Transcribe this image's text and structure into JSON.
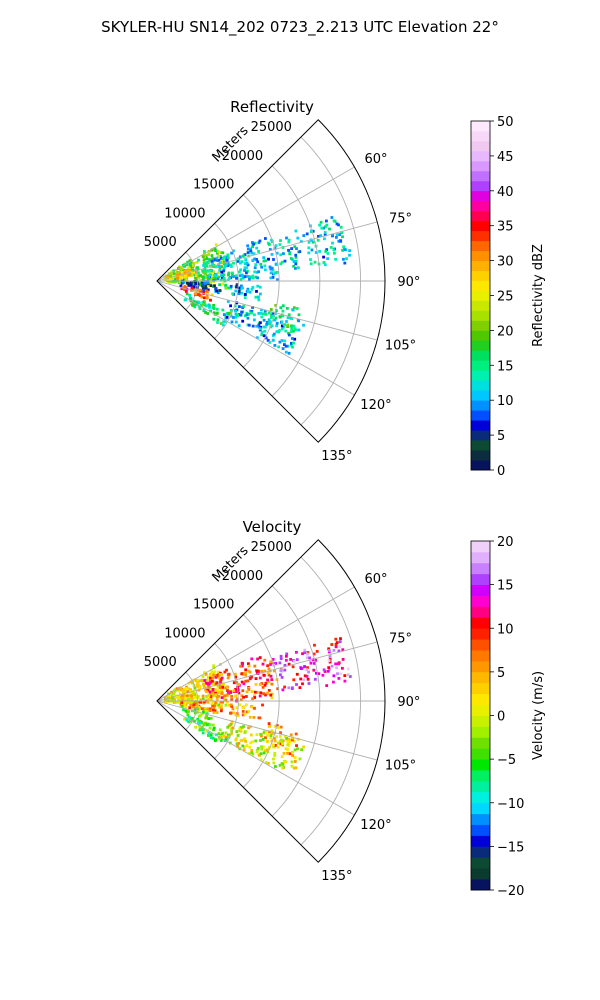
{
  "suptitle": "SKYLER-HU  SN14_202  0723_2.213 UTC Elevation 22°",
  "chart_data": [
    {
      "type": "polar-sector",
      "title": "Reflectivity",
      "range_label": "Meters",
      "r_ticks": [
        5000,
        10000,
        15000,
        20000,
        25000
      ],
      "r_tick_labels": [
        "5000",
        "10000",
        "15000",
        "20000",
        "25000"
      ],
      "rlim": [
        0,
        28000
      ],
      "theta_range_deg": [
        45,
        135
      ],
      "theta_ticks": [
        60,
        75,
        90,
        105,
        120,
        135
      ],
      "theta_tick_labels": [
        "60°",
        "75°",
        "90°",
        "105°",
        "120°",
        "135°"
      ],
      "grid": true,
      "colorbar": {
        "label": "Reflectivity dBZ",
        "range": [
          0,
          50
        ],
        "ticks": [
          0,
          5,
          10,
          15,
          20,
          25,
          30,
          35,
          40,
          45,
          50
        ],
        "tick_labels": [
          "0",
          "5",
          "10",
          "15",
          "20",
          "25",
          "30",
          "35",
          "40",
          "45",
          "50"
        ],
        "colors": [
          "#08135e",
          "#0b2d3d",
          "#0d4a33",
          "#0a2a7a",
          "#0000d8",
          "#0050ff",
          "#0090ff",
          "#00c8ff",
          "#00e0e0",
          "#00f0b0",
          "#00f080",
          "#00e060",
          "#20d020",
          "#50c800",
          "#80d000",
          "#a8e000",
          "#c8e800",
          "#e8f000",
          "#ffe800",
          "#ffd000",
          "#ffb000",
          "#ff9000",
          "#ff6800",
          "#ff3000",
          "#ff0000",
          "#ff0050",
          "#ff00a0",
          "#e000e0",
          "#b040ff",
          "#c070ff",
          "#d898ff",
          "#e8b8ff",
          "#f0c8f0",
          "#f8d8f8",
          "#fde8fd"
        ]
      },
      "regions": [
        {
          "r": [
            1000,
            9000
          ],
          "theta": [
            58,
            96
          ],
          "value": 20
        },
        {
          "r": [
            1000,
            5000
          ],
          "theta": [
            70,
            84
          ],
          "value": 27
        },
        {
          "r": [
            6000,
            15000
          ],
          "theta": [
            68,
            90
          ],
          "value": 12
        },
        {
          "r": [
            3000,
            8000
          ],
          "theta": [
            90,
            102
          ],
          "value": 7
        },
        {
          "r": [
            9000,
            13000
          ],
          "theta": [
            92,
            101
          ],
          "value": 10
        },
        {
          "r": [
            4000,
            10000
          ],
          "theta": [
            113,
            125
          ],
          "value": 16
        },
        {
          "r": [
            3000,
            7000
          ],
          "theta": [
            101,
            110
          ],
          "value": 33
        },
        {
          "r": [
            14000,
            18000
          ],
          "theta": [
            101,
            112
          ],
          "value": 16
        },
        {
          "r": [
            15000,
            24000
          ],
          "theta": [
            70,
            85
          ],
          "value": 12
        },
        {
          "r": [
            9000,
            19000
          ],
          "theta": [
            105,
            120
          ],
          "value": 11
        }
      ]
    },
    {
      "type": "polar-sector",
      "title": "Velocity",
      "range_label": "Meters",
      "r_ticks": [
        5000,
        10000,
        15000,
        20000,
        25000
      ],
      "r_tick_labels": [
        "5000",
        "10000",
        "15000",
        "20000",
        "25000"
      ],
      "rlim": [
        0,
        28000
      ],
      "theta_range_deg": [
        45,
        135
      ],
      "theta_ticks": [
        60,
        75,
        90,
        105,
        120,
        135
      ],
      "theta_tick_labels": [
        "60°",
        "75°",
        "90°",
        "105°",
        "120°",
        "135°"
      ],
      "grid": true,
      "colorbar": {
        "label": "Velocity (m/s)",
        "range": [
          -20,
          20
        ],
        "ticks": [
          -20,
          -15,
          -10,
          -5,
          0,
          5,
          10,
          15,
          20
        ],
        "tick_labels": [
          "−20",
          "−15",
          "−10",
          "−5",
          "0",
          "5",
          "10",
          "15",
          "20"
        ],
        "colors": [
          "#08135e",
          "#0b3a2e",
          "#0d4a33",
          "#0a2a7a",
          "#0000d8",
          "#0050ff",
          "#0090ff",
          "#00d8ff",
          "#00f0e0",
          "#00f0a0",
          "#00f060",
          "#00e800",
          "#40e000",
          "#70e000",
          "#a0f000",
          "#c8f000",
          "#e8f000",
          "#ffe800",
          "#ffd000",
          "#ffb800",
          "#ff9800",
          "#ff7800",
          "#ff5000",
          "#ff2000",
          "#ff0000",
          "#ff0080",
          "#ff00d0",
          "#d000ff",
          "#b040ff",
          "#c880ff",
          "#e0b0ff",
          "#f0d0f8"
        ]
      },
      "regions": [
        {
          "r": [
            1000,
            9000
          ],
          "theta": [
            58,
            96
          ],
          "value": 2
        },
        {
          "r": [
            6000,
            15000
          ],
          "theta": [
            66,
            90
          ],
          "value": 8
        },
        {
          "r": [
            3000,
            8000
          ],
          "theta": [
            90,
            102
          ],
          "value": 5
        },
        {
          "r": [
            9000,
            13000
          ],
          "theta": [
            92,
            101
          ],
          "value": 5
        },
        {
          "r": [
            4000,
            10000
          ],
          "theta": [
            113,
            125
          ],
          "value": -5
        },
        {
          "r": [
            3000,
            7000
          ],
          "theta": [
            101,
            110
          ],
          "value": -3
        },
        {
          "r": [
            14000,
            18000
          ],
          "theta": [
            101,
            112
          ],
          "value": 5
        },
        {
          "r": [
            15000,
            24000
          ],
          "theta": [
            70,
            85
          ],
          "value": 14
        },
        {
          "r": [
            9000,
            19000
          ],
          "theta": [
            105,
            120
          ],
          "value": 1
        }
      ]
    }
  ]
}
